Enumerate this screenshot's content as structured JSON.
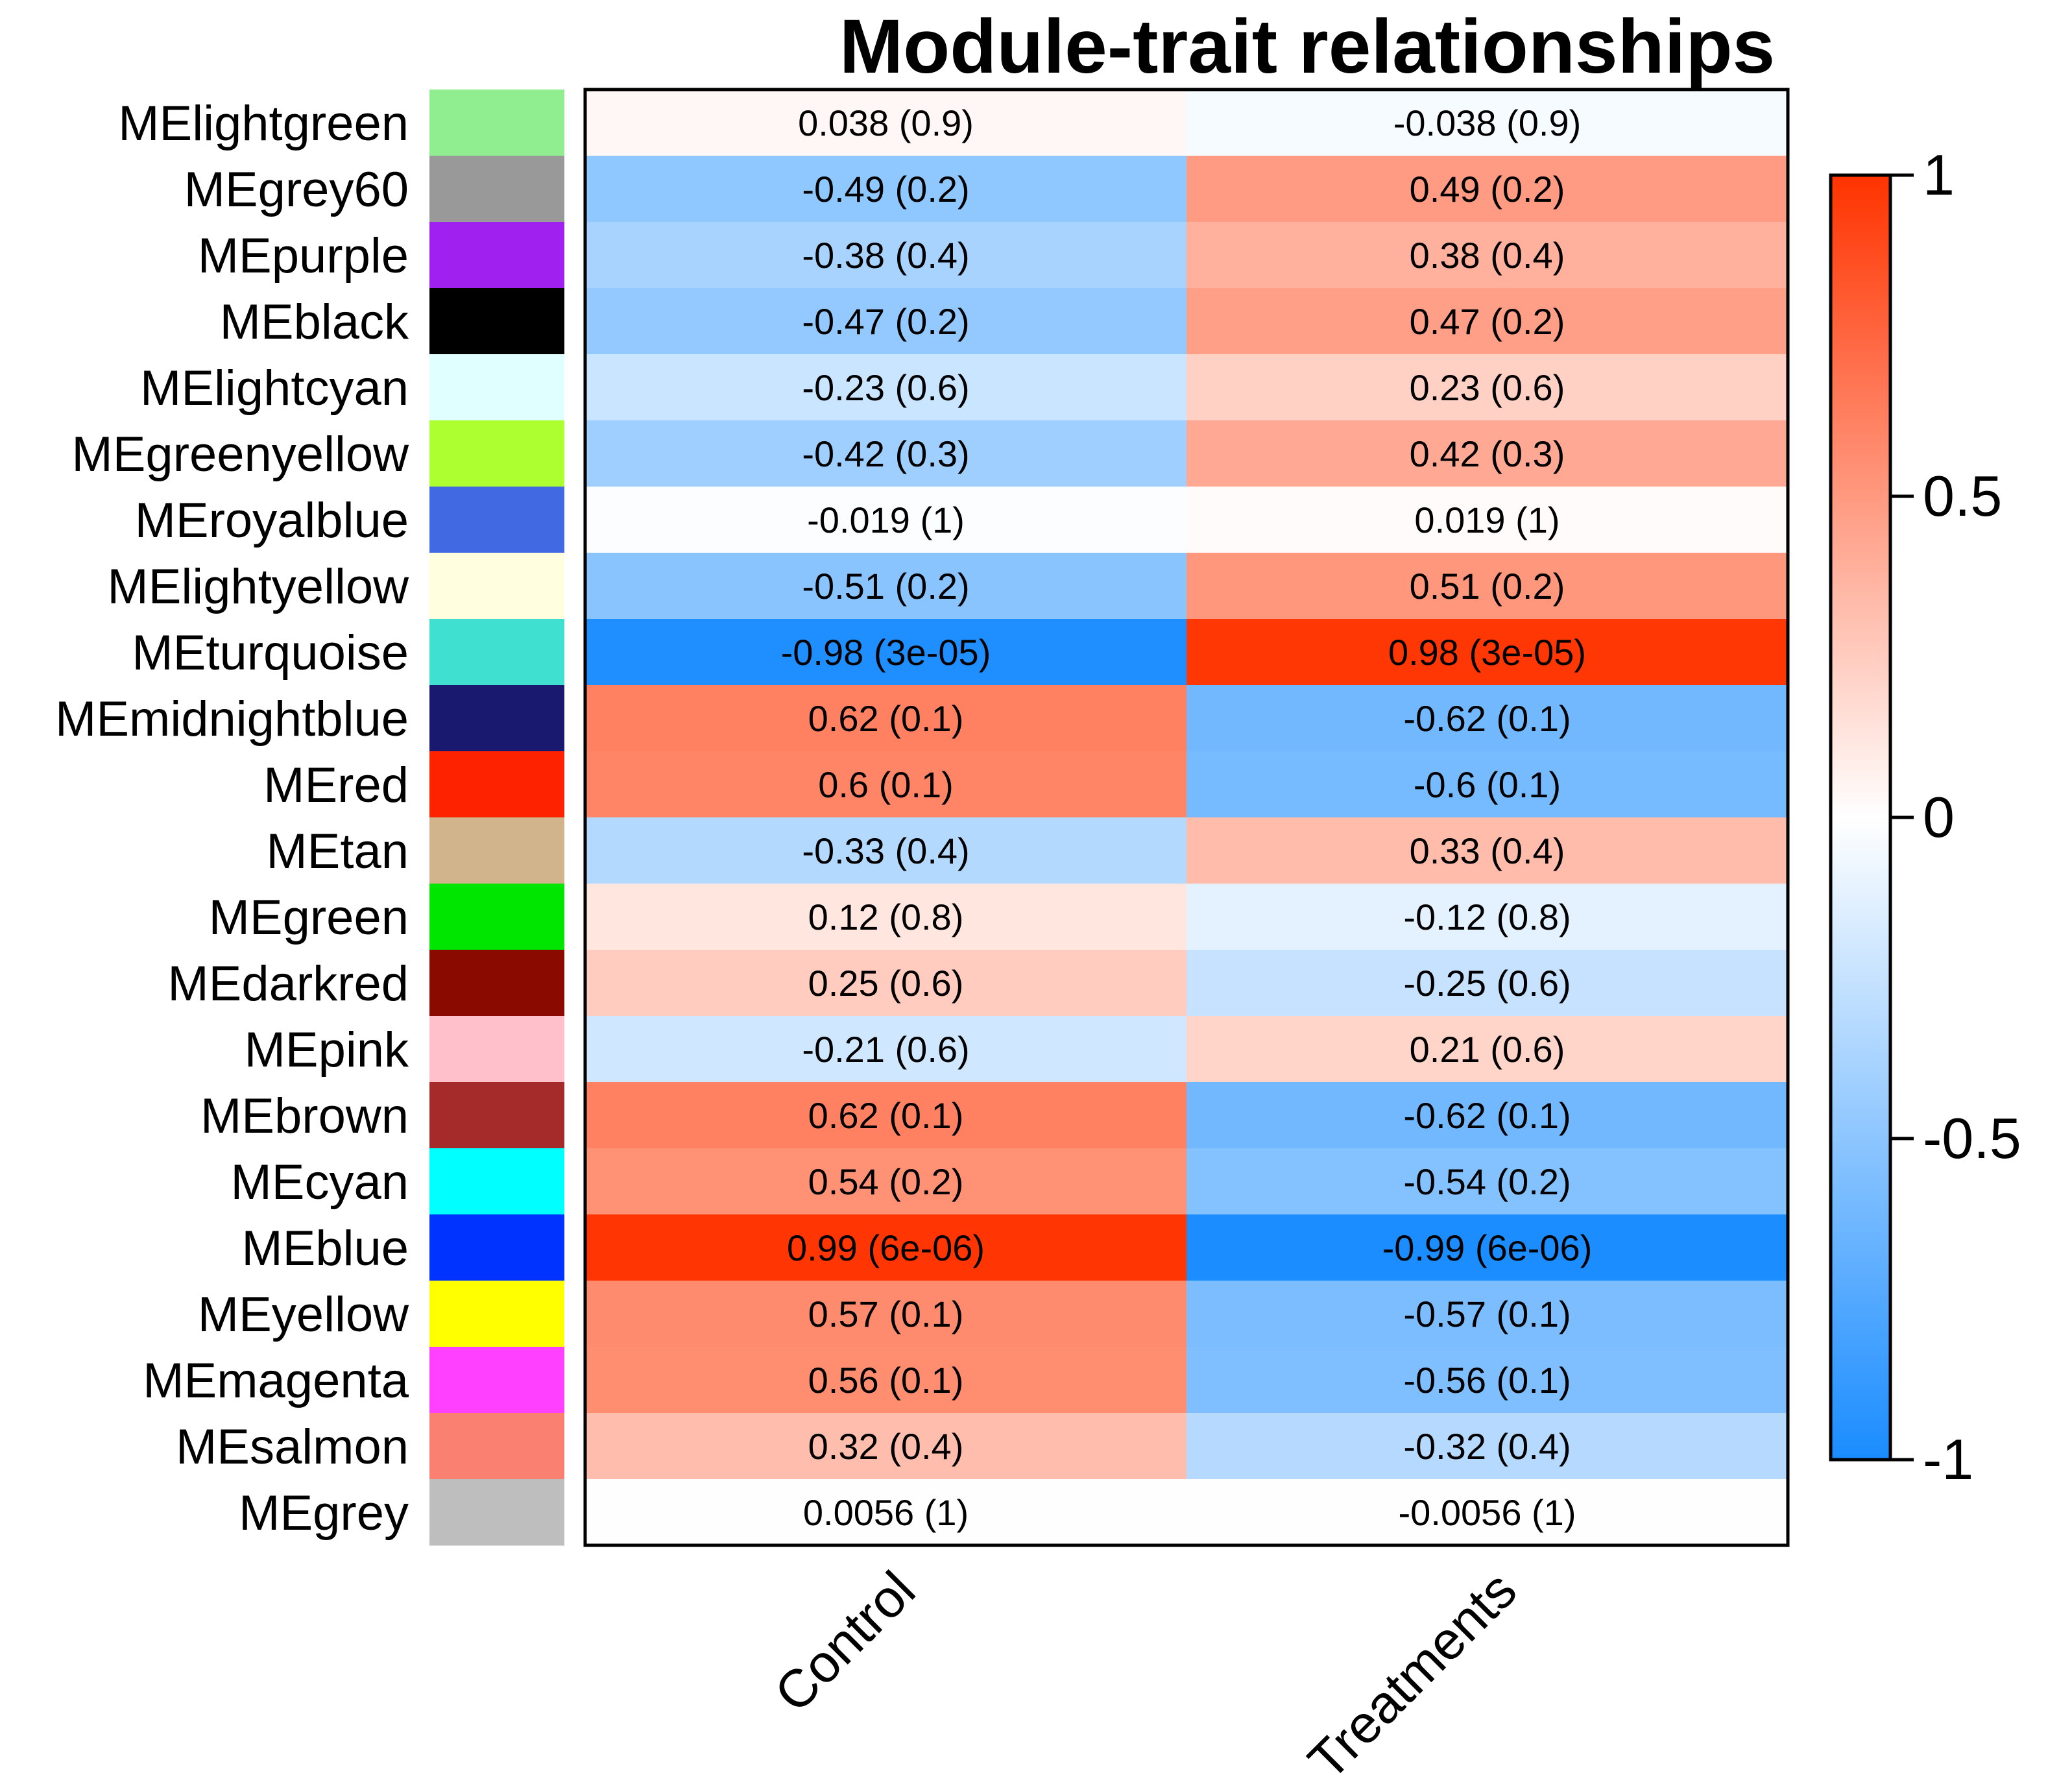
{
  "chart_data": {
    "type": "heatmap",
    "title": "Module-trait relationships",
    "columns": [
      "Control",
      "Treatments"
    ],
    "rows": [
      {
        "module": "MElightgreen",
        "swatch": "#90EE90",
        "values": [
          0.038,
          -0.038
        ],
        "labels": [
          "0.038 (0.9)",
          "-0.038 (0.9)"
        ]
      },
      {
        "module": "MEgrey60",
        "swatch": "#999999",
        "values": [
          -0.49,
          0.49
        ],
        "labels": [
          "-0.49 (0.2)",
          "0.49 (0.2)"
        ]
      },
      {
        "module": "MEpurple",
        "swatch": "#A020F0",
        "values": [
          -0.38,
          0.38
        ],
        "labels": [
          "-0.38 (0.4)",
          "0.38 (0.4)"
        ]
      },
      {
        "module": "MEblack",
        "swatch": "#000000",
        "values": [
          -0.47,
          0.47
        ],
        "labels": [
          "-0.47 (0.2)",
          "0.47 (0.2)"
        ]
      },
      {
        "module": "MElightcyan",
        "swatch": "#E0FFFF",
        "values": [
          -0.23,
          0.23
        ],
        "labels": [
          "-0.23 (0.6)",
          "0.23 (0.6)"
        ]
      },
      {
        "module": "MEgreenyellow",
        "swatch": "#ADFF2F",
        "values": [
          -0.42,
          0.42
        ],
        "labels": [
          "-0.42 (0.3)",
          "0.42 (0.3)"
        ]
      },
      {
        "module": "MEroyalblue",
        "swatch": "#4169E1",
        "values": [
          -0.019,
          0.019
        ],
        "labels": [
          "-0.019 (1)",
          "0.019 (1)"
        ]
      },
      {
        "module": "MElightyellow",
        "swatch": "#FFFFE0",
        "values": [
          -0.51,
          0.51
        ],
        "labels": [
          "-0.51 (0.2)",
          "0.51 (0.2)"
        ]
      },
      {
        "module": "MEturquoise",
        "swatch": "#40E0D0",
        "values": [
          -0.98,
          0.98
        ],
        "labels": [
          "-0.98 (3e-05)",
          "0.98 (3e-05)"
        ]
      },
      {
        "module": "MEmidnightblue",
        "swatch": "#191970",
        "values": [
          0.62,
          -0.62
        ],
        "labels": [
          "0.62 (0.1)",
          "-0.62 (0.1)"
        ]
      },
      {
        "module": "MEred",
        "swatch": "#FF2200",
        "values": [
          0.6,
          -0.6
        ],
        "labels": [
          "0.6 (0.1)",
          "-0.6 (0.1)"
        ]
      },
      {
        "module": "MEtan",
        "swatch": "#D2B48C",
        "values": [
          -0.33,
          0.33
        ],
        "labels": [
          "-0.33 (0.4)",
          "0.33 (0.4)"
        ]
      },
      {
        "module": "MEgreen",
        "swatch": "#00E600",
        "values": [
          0.12,
          -0.12
        ],
        "labels": [
          "0.12 (0.8)",
          "-0.12 (0.8)"
        ]
      },
      {
        "module": "MEdarkred",
        "swatch": "#8B0A00",
        "values": [
          0.25,
          -0.25
        ],
        "labels": [
          "0.25 (0.6)",
          "-0.25 (0.6)"
        ]
      },
      {
        "module": "MEpink",
        "swatch": "#FFC0CB",
        "values": [
          -0.21,
          0.21
        ],
        "labels": [
          "-0.21 (0.6)",
          "0.21 (0.6)"
        ]
      },
      {
        "module": "MEbrown",
        "swatch": "#A52A2A",
        "values": [
          0.62,
          -0.62
        ],
        "labels": [
          "0.62 (0.1)",
          "-0.62 (0.1)"
        ]
      },
      {
        "module": "MEcyan",
        "swatch": "#00FFFF",
        "values": [
          0.54,
          -0.54
        ],
        "labels": [
          "0.54 (0.2)",
          "-0.54 (0.2)"
        ]
      },
      {
        "module": "MEblue",
        "swatch": "#0033FF",
        "values": [
          0.99,
          -0.99
        ],
        "labels": [
          "0.99 (6e-06)",
          "-0.99 (6e-06)"
        ]
      },
      {
        "module": "MEyellow",
        "swatch": "#FFFF00",
        "values": [
          0.57,
          -0.57
        ],
        "labels": [
          "0.57 (0.1)",
          "-0.57 (0.1)"
        ]
      },
      {
        "module": "MEmagenta",
        "swatch": "#FF40FF",
        "values": [
          0.56,
          -0.56
        ],
        "labels": [
          "0.56 (0.1)",
          "-0.56 (0.1)"
        ]
      },
      {
        "module": "MEsalmon",
        "swatch": "#FA8072",
        "values": [
          0.32,
          -0.32
        ],
        "labels": [
          "0.32 (0.4)",
          "-0.32 (0.4)"
        ]
      },
      {
        "module": "MEgrey",
        "swatch": "#BEBEBE",
        "values": [
          0.0056,
          -0.0056
        ],
        "labels": [
          "0.0056 (1)",
          "-0.0056 (1)"
        ]
      }
    ],
    "color_scale": {
      "range": [
        -1,
        1
      ],
      "low_color": "#1A8CFF",
      "mid_color": "#FFFFFF",
      "high_color": "#FF3300",
      "ticks": [
        1,
        0.5,
        0,
        -0.5,
        -1
      ],
      "tick_labels": [
        "1",
        "0.5",
        "0",
        "-0.5",
        "-1"
      ]
    }
  }
}
